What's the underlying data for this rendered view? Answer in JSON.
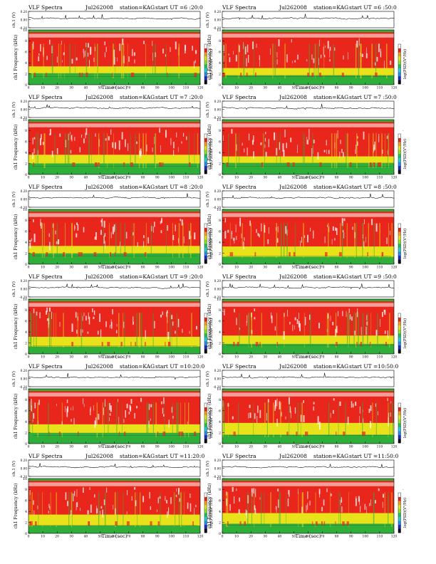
{
  "page": {
    "colors": {
      "spectrogram_low": "#2fae3a",
      "spectrogram_mid": "#e8e21a",
      "spectrogram_high": "#e8261c",
      "spectrogram_peak": "#ffffff",
      "colorbar": [
        "#000000",
        "#1c28c8",
        "#1e90e6",
        "#1ed2d2",
        "#22c25a",
        "#8ce628",
        "#e8e21a",
        "#f2a21a",
        "#e8261c",
        "#ffffff"
      ]
    }
  },
  "chart_data": [
    {
      "type": "heatmap",
      "panel": "p1",
      "title": "VLF Spectra",
      "date": "Jul262008",
      "station": "station=KAG",
      "start": "start UT =6 :20:0",
      "top_ylabel": "ch.1 (V)",
      "top_yticks": [
        "0.20",
        "0.00",
        "-0.20"
      ],
      "top_ylim": [
        -0.2,
        0.2
      ],
      "ylabel": "ch1 Frequency (kHz)",
      "yticks": [
        "0",
        "2",
        "4",
        "6",
        "8",
        "10"
      ],
      "ylim": [
        0,
        10
      ],
      "xlabel": "Time (sec)",
      "xticks": [
        "0",
        "10",
        "20",
        "30",
        "40",
        "50",
        "60",
        "70",
        "80",
        "90",
        "100",
        "110",
        "120"
      ],
      "xlim": [
        0,
        120
      ],
      "colorbar_label": "log(PSD)(V²/Hz)",
      "colorbar_ticks": [
        "-",
        "-"
      ]
    },
    {
      "type": "heatmap",
      "panel": "p2",
      "title": "VLF Spectra",
      "date": "Jul262008",
      "station": "station=KAG",
      "start": "start UT =6 :50:0",
      "top_ylabel": "ch.1 (V)",
      "top_yticks": [
        "0.20",
        "0.00",
        "-0.20"
      ],
      "top_ylim": [
        -0.2,
        0.2
      ],
      "ylabel": "ch1 Frequency (kHz)",
      "yticks": [
        "0",
        "2",
        "4",
        "6",
        "8",
        "10"
      ],
      "ylim": [
        0,
        10
      ],
      "xlabel": "Time (sec)",
      "xticks": [
        "0",
        "10",
        "20",
        "30",
        "40",
        "50",
        "60",
        "70",
        "80",
        "90",
        "100",
        "110",
        "120"
      ],
      "xlim": [
        0,
        120
      ],
      "colorbar_label": "log(PSD)(V²/Hz)",
      "colorbar_ticks": [
        "-",
        "-"
      ]
    },
    {
      "type": "heatmap",
      "panel": "p3",
      "title": "VLF Spectra",
      "date": "Jul262008",
      "station": "station=KAG",
      "start": "start UT =7 :20:0",
      "top_ylabel": "ch.1 (V)",
      "top_yticks": [
        "0.20",
        "0.00",
        "-0.20"
      ],
      "top_ylim": [
        -0.2,
        0.2
      ],
      "ylabel": "ch1 Frequency (kHz)",
      "yticks": [
        "0",
        "2",
        "4",
        "6",
        "8",
        "10"
      ],
      "ylim": [
        0,
        10
      ],
      "xlabel": "Time (sec)",
      "xticks": [
        "0",
        "10",
        "20",
        "30",
        "40",
        "50",
        "60",
        "70",
        "80",
        "90",
        "100",
        "110",
        "120"
      ],
      "xlim": [
        0,
        120
      ],
      "colorbar_label": "log(PSD)(V²/Hz)",
      "colorbar_ticks": [
        "-",
        "-"
      ]
    },
    {
      "type": "heatmap",
      "panel": "p4",
      "title": "VLF Spectra",
      "date": "Jul262008",
      "station": "station=KAG",
      "start": "start UT =7 :50:0",
      "top_ylabel": "ch.1 (V)",
      "top_yticks": [
        "0.20",
        "0.00",
        "-0.20"
      ],
      "top_ylim": [
        -0.2,
        0.2
      ],
      "ylabel": "ch1 Frequency (kHz)",
      "yticks": [
        "0",
        "2",
        "4",
        "6",
        "8",
        "10"
      ],
      "ylim": [
        0,
        10
      ],
      "xlabel": "Time (sec)",
      "xticks": [
        "0",
        "10",
        "20",
        "30",
        "40",
        "50",
        "60",
        "70",
        "80",
        "90",
        "100",
        "110",
        "120"
      ],
      "xlim": [
        0,
        120
      ],
      "colorbar_label": "log(PSD)(V²/Hz)",
      "colorbar_ticks": [
        "-",
        "-"
      ]
    },
    {
      "type": "heatmap",
      "panel": "p5",
      "title": "VLF Spectra",
      "date": "Jul262008",
      "station": "station=KAG",
      "start": "start UT =8 :20:0",
      "top_ylabel": "ch.1 (V)",
      "top_yticks": [
        "0.20",
        "0.00",
        "-0.20"
      ],
      "top_ylim": [
        -0.2,
        0.2
      ],
      "ylabel": "ch1 Frequency (kHz)",
      "yticks": [
        "0",
        "2",
        "4",
        "6",
        "8",
        "10"
      ],
      "ylim": [
        0,
        10
      ],
      "xlabel": "Time (sec)",
      "xticks": [
        "0",
        "10",
        "20",
        "30",
        "40",
        "50",
        "60",
        "70",
        "80",
        "90",
        "100",
        "110",
        "120"
      ],
      "xlim": [
        0,
        120
      ],
      "colorbar_label": "log(PSD)(V²/Hz)",
      "colorbar_ticks": [
        "-",
        "-"
      ]
    },
    {
      "type": "heatmap",
      "panel": "p6",
      "title": "VLF Spectra",
      "date": "Jul262008",
      "station": "station=KAG",
      "start": "start UT =8 :50:0",
      "top_ylabel": "ch.1 (V)",
      "top_yticks": [
        "0.20",
        "0.00",
        "-0.20"
      ],
      "top_ylim": [
        -0.2,
        0.2
      ],
      "ylabel": "ch1 Frequency (kHz)",
      "yticks": [
        "0",
        "2",
        "4",
        "6",
        "8",
        "10"
      ],
      "ylim": [
        0,
        10
      ],
      "xlabel": "Time (sec)",
      "xticks": [
        "0",
        "10",
        "20",
        "30",
        "40",
        "50",
        "60",
        "70",
        "80",
        "90",
        "100",
        "110",
        "120"
      ],
      "xlim": [
        0,
        120
      ],
      "colorbar_label": "log(PSD)(V²/Hz)",
      "colorbar_ticks": [
        "-",
        "-"
      ]
    },
    {
      "type": "heatmap",
      "panel": "p7",
      "title": "VLF Spectra",
      "date": "Jul262008",
      "station": "station=KAG",
      "start": "start UT =9 :20:0",
      "top_ylabel": "ch.1 (V)",
      "top_yticks": [
        "0.20",
        "0.00",
        "-0.20"
      ],
      "top_ylim": [
        -0.2,
        0.2
      ],
      "ylabel": "ch1 Frequency (kHz)",
      "yticks": [
        "0",
        "2",
        "4",
        "6",
        "8",
        "10"
      ],
      "ylim": [
        0,
        10
      ],
      "xlabel": "Time (sec)",
      "xticks": [
        "0",
        "10",
        "20",
        "30",
        "40",
        "50",
        "60",
        "70",
        "80",
        "90",
        "100",
        "110",
        "120"
      ],
      "xlim": [
        0,
        120
      ],
      "colorbar_label": "log(PSD)(V²/Hz)",
      "colorbar_ticks": [
        "-",
        "-"
      ]
    },
    {
      "type": "heatmap",
      "panel": "p8",
      "title": "VLF Spectra",
      "date": "Jul262008",
      "station": "station=KAG",
      "start": "start UT =9 :50:0",
      "top_ylabel": "ch.1 (V)",
      "top_yticks": [
        "0.20",
        "0.00",
        "-0.20"
      ],
      "top_ylim": [
        -0.2,
        0.2
      ],
      "ylabel": "ch1 Frequency (kHz)",
      "yticks": [
        "0",
        "2",
        "4",
        "6",
        "8",
        "10"
      ],
      "ylim": [
        0,
        10
      ],
      "xlabel": "Time (sec)",
      "xticks": [
        "0",
        "10",
        "20",
        "30",
        "40",
        "50",
        "60",
        "70",
        "80",
        "90",
        "100",
        "110",
        "120"
      ],
      "xlim": [
        0,
        120
      ],
      "colorbar_label": "log(PSD)(V²/Hz)",
      "colorbar_ticks": [
        "-",
        "-"
      ]
    },
    {
      "type": "heatmap",
      "panel": "p9",
      "title": "VLF Spectra",
      "date": "Jul262008",
      "station": "station=KAG",
      "start": "start UT =10:20:0",
      "top_ylabel": "ch.1 (V)",
      "top_yticks": [
        "0.20",
        "0.00",
        "-0.20"
      ],
      "top_ylim": [
        -0.2,
        0.2
      ],
      "ylabel": "ch1 Frequency (kHz)",
      "yticks": [
        "0",
        "2",
        "4",
        "6",
        "8",
        "10"
      ],
      "ylim": [
        0,
        10
      ],
      "xlabel": "Time (sec)",
      "xticks": [
        "0",
        "10",
        "20",
        "30",
        "40",
        "50",
        "60",
        "70",
        "80",
        "90",
        "100",
        "110",
        "120"
      ],
      "xlim": [
        0,
        120
      ],
      "colorbar_label": "log(PSD)(V²/Hz)",
      "colorbar_ticks": [
        "-",
        "-"
      ]
    },
    {
      "type": "heatmap",
      "panel": "p10",
      "title": "VLF Spectra",
      "date": "Jul262008",
      "station": "station=KAG",
      "start": "start UT =10:50:0",
      "top_ylabel": "ch.1 (V)",
      "top_yticks": [
        "0.20",
        "0.00",
        "-0.20"
      ],
      "top_ylim": [
        -0.2,
        0.2
      ],
      "ylabel": "ch1 Frequency (kHz)",
      "yticks": [
        "0",
        "2",
        "4",
        "6",
        "8",
        "10"
      ],
      "ylim": [
        0,
        10
      ],
      "xlabel": "Time (sec)",
      "xticks": [
        "0",
        "10",
        "20",
        "30",
        "40",
        "50",
        "60",
        "70",
        "80",
        "90",
        "100",
        "110",
        "120"
      ],
      "xlim": [
        0,
        120
      ],
      "colorbar_label": "log(PSD)(V²/Hz)",
      "colorbar_ticks": [
        "-",
        "-"
      ]
    },
    {
      "type": "heatmap",
      "panel": "p11",
      "title": "VLF Spectra",
      "date": "Jul262008",
      "station": "station=KAG",
      "start": "start UT =11:20:0",
      "top_ylabel": "ch.1 (V)",
      "top_yticks": [
        "0.20",
        "0.00",
        "-0.20"
      ],
      "top_ylim": [
        -0.2,
        0.2
      ],
      "ylabel": "ch1 Frequency (kHz)",
      "yticks": [
        "0",
        "2",
        "4",
        "6",
        "8",
        "10"
      ],
      "ylim": [
        0,
        10
      ],
      "xlabel": "Time (sec)",
      "xticks": [
        "0",
        "10",
        "20",
        "30",
        "40",
        "50",
        "60",
        "70",
        "80",
        "90",
        "100",
        "110",
        "120"
      ],
      "xlim": [
        0,
        120
      ],
      "colorbar_label": "log(PSD)(V²/Hz)",
      "colorbar_ticks": [
        "-",
        "-"
      ]
    },
    {
      "type": "heatmap",
      "panel": "p12",
      "title": "VLF Spectra",
      "date": "Jul262008",
      "station": "station=KAG",
      "start": "start UT =11:50:0",
      "top_ylabel": "ch.1 (V)",
      "top_yticks": [
        "0.20",
        "0.00",
        "-0.20"
      ],
      "top_ylim": [
        -0.2,
        0.2
      ],
      "ylabel": "ch1 Frequency (kHz)",
      "yticks": [
        "0",
        "2",
        "4",
        "6",
        "8",
        "10"
      ],
      "ylim": [
        0,
        10
      ],
      "xlabel": "Time (sec)",
      "xticks": [
        "0",
        "10",
        "20",
        "30",
        "40",
        "50",
        "60",
        "70",
        "80",
        "90",
        "100",
        "110",
        "120"
      ],
      "xlim": [
        0,
        120
      ],
      "colorbar_label": "log(PSD)(V²/Hz)",
      "colorbar_ticks": [
        "-",
        "-"
      ]
    }
  ]
}
